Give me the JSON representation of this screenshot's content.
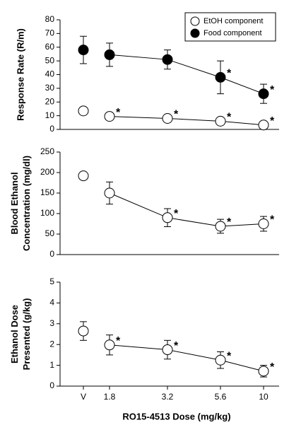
{
  "chart_data": [
    {
      "type": "line",
      "ylabel": [
        "Response Rate (R/m)"
      ],
      "categories": [
        "V",
        "1.8",
        "3.2",
        "5.6",
        "10"
      ],
      "ylim": [
        0,
        80
      ],
      "yticks": [
        0,
        10,
        20,
        30,
        40,
        50,
        60,
        70,
        80
      ],
      "series": [
        {
          "name": "EtOH component",
          "color": "#ffffff",
          "values": [
            13.5,
            9.5,
            8,
            6,
            3.2
          ],
          "errors": [
            1,
            1,
            1,
            1,
            1
          ],
          "annotations": [
            null,
            "*",
            "*",
            "*",
            "*"
          ]
        },
        {
          "name": "Food component",
          "color": "#000000",
          "values": [
            58,
            54.5,
            51,
            38,
            26
          ],
          "errors": [
            10,
            8.5,
            7,
            12,
            7
          ],
          "annotations": [
            null,
            null,
            null,
            "*",
            "*"
          ]
        }
      ]
    },
    {
      "type": "line",
      "ylabel": [
        "Blood Ethanol",
        "Concentration (mg/dl)"
      ],
      "categories": [
        "V",
        "1.8",
        "3.2",
        "5.6",
        "10"
      ],
      "ylim": [
        0,
        250
      ],
      "yticks": [
        0,
        50,
        100,
        150,
        200,
        250
      ],
      "series": [
        {
          "name": "EtOH component",
          "color": "#ffffff",
          "values": [
            192,
            150,
            90,
            69,
            75
          ],
          "errors": [
            5,
            27,
            22,
            17,
            18
          ],
          "annotations": [
            null,
            null,
            "*",
            "*",
            "*"
          ]
        }
      ]
    },
    {
      "type": "line",
      "ylabel": [
        "Ethanol Dose",
        "Presented (g/kg)"
      ],
      "categories": [
        "V",
        "1.8",
        "3.2",
        "5.6",
        "10"
      ],
      "xlabel": "RO15-4513 Dose (mg/kg)",
      "ylim": [
        0,
        5
      ],
      "yticks": [
        0,
        1,
        2,
        3,
        4,
        5
      ],
      "series": [
        {
          "name": "EtOH component",
          "color": "#ffffff",
          "values": [
            2.65,
            1.98,
            1.75,
            1.25,
            0.72
          ],
          "errors": [
            0.45,
            0.48,
            0.45,
            0.4,
            0.28
          ],
          "annotations": [
            null,
            "*",
            "*",
            "*",
            "*"
          ]
        }
      ]
    }
  ]
}
